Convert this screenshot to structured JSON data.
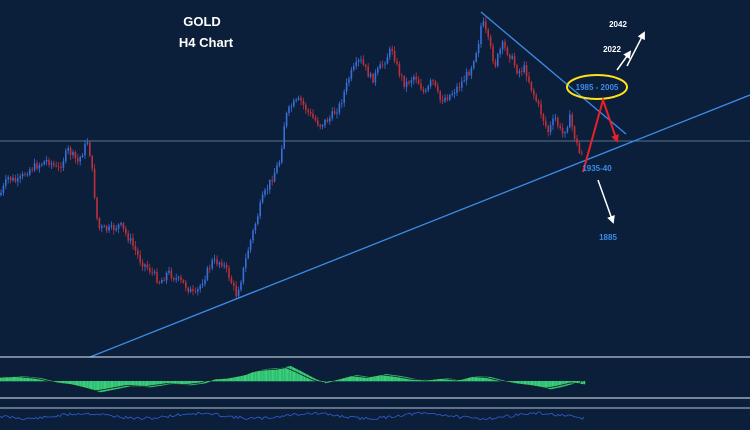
{
  "chart_data": {
    "type": "candlestick",
    "title": "GOLD",
    "subtitle": "H4 Chart",
    "annotations": {
      "zone": "1985 - 2005",
      "support": "1935-40",
      "target_up_1": "2022",
      "target_up_2": "2042",
      "target_down": "1885"
    },
    "trendlines": [
      "ascending support",
      "descending resistance"
    ],
    "horizontal_level": "support-resistance",
    "indicators": [
      "oscillator histogram",
      "oscillator line"
    ],
    "colors": {
      "background": "#0b1f3a",
      "bull_candle": "#3a6fd8",
      "bear_candle": "#c0303a",
      "trendline": "#3d8be8",
      "ellipse": "#ffe21a",
      "arrow_red": "#e8202a",
      "arrow_white": "#ffffff",
      "histogram": "#37d07a",
      "label_blue": "#3d8be8"
    }
  }
}
